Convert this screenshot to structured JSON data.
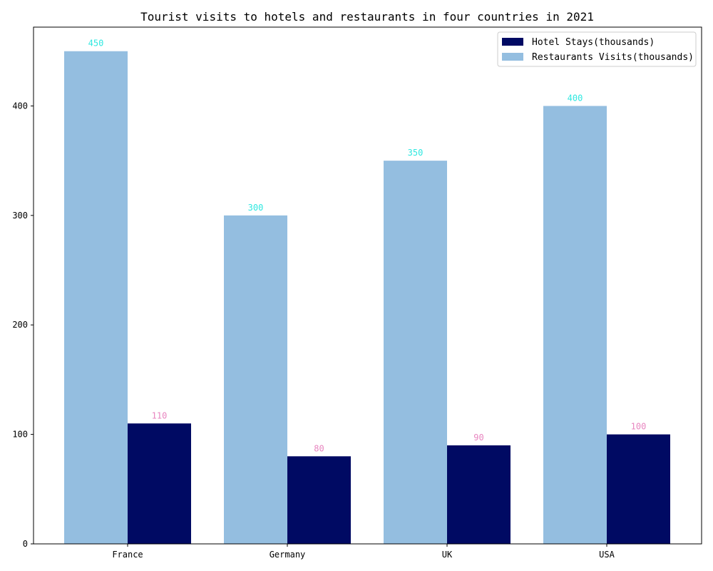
{
  "chart_data": {
    "type": "bar",
    "title": "Tourist visits to hotels and restaurants in four countries in 2021",
    "xlabel": "",
    "ylabel": "",
    "categories": [
      "France",
      "Germany",
      "UK",
      "USA"
    ],
    "ylim": [
      0,
      472
    ],
    "yticks": [
      0,
      100,
      200,
      300,
      400
    ],
    "grid": false,
    "legend_position": "top-right",
    "series": [
      {
        "name": "Restaurants Visits(thousands)",
        "values": [
          450,
          300,
          350,
          400
        ],
        "color": "#94bee0",
        "label_color": "#2ee8e0"
      },
      {
        "name": "Hotel Stays(thousands)",
        "values": [
          110,
          80,
          90,
          100
        ],
        "color": "#000a63",
        "label_color": "#e886c0"
      }
    ],
    "legend_order": [
      1,
      0
    ]
  }
}
